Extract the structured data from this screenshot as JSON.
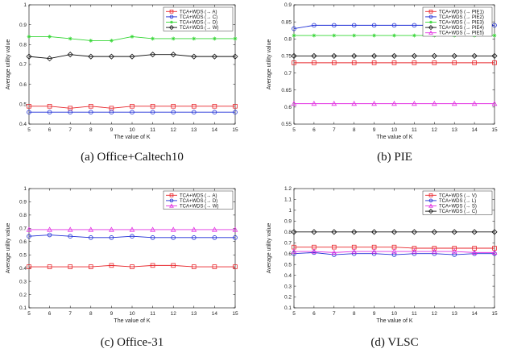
{
  "chart_data": [
    {
      "type": "line",
      "caption": "(a) Office+Caltech10",
      "xlabel": "The value of K",
      "ylabel": "Average utility value",
      "xlim": [
        5,
        15
      ],
      "ylim": [
        0.4,
        1
      ],
      "xticks": [
        5,
        6,
        7,
        8,
        9,
        10,
        11,
        12,
        13,
        14,
        15
      ],
      "yticks": [
        0.4,
        0.5,
        0.6,
        0.7,
        0.8,
        0.9,
        1
      ],
      "ytick_labels": [
        "0.4",
        "0.5",
        "0.6",
        "0.7",
        "0.8",
        "0.9",
        "1"
      ],
      "grid": false,
      "legend_position": "top-right",
      "x": [
        5,
        6,
        7,
        8,
        9,
        10,
        11,
        12,
        13,
        14,
        15
      ],
      "series": [
        {
          "name": "TCA+WDS (→ A)",
          "color": "#e8262b",
          "marker": "square",
          "values": [
            0.49,
            0.49,
            0.48,
            0.49,
            0.48,
            0.49,
            0.49,
            0.49,
            0.49,
            0.49,
            0.49
          ]
        },
        {
          "name": "TCA+WDS (→ C)",
          "color": "#1f2fd6",
          "marker": "circle",
          "values": [
            0.46,
            0.46,
            0.46,
            0.46,
            0.46,
            0.46,
            0.46,
            0.46,
            0.46,
            0.46,
            0.46
          ]
        },
        {
          "name": "TCA+WDS (→ D)",
          "color": "#33d633",
          "marker": "star",
          "values": [
            0.84,
            0.84,
            0.83,
            0.82,
            0.82,
            0.84,
            0.83,
            0.83,
            0.83,
            0.83,
            0.83
          ]
        },
        {
          "name": "TCA+WDS (→ W)",
          "color": "#111111",
          "marker": "diamond",
          "values": [
            0.74,
            0.73,
            0.75,
            0.74,
            0.74,
            0.74,
            0.75,
            0.75,
            0.74,
            0.74,
            0.74
          ]
        }
      ]
    },
    {
      "type": "line",
      "caption": "(b) PIE",
      "xlabel": "The value of K",
      "ylabel": "Average utility value",
      "xlim": [
        5,
        15
      ],
      "ylim": [
        0.55,
        0.9
      ],
      "xticks": [
        5,
        6,
        7,
        8,
        9,
        10,
        11,
        12,
        13,
        14,
        15
      ],
      "yticks": [
        0.55,
        0.6,
        0.65,
        0.7,
        0.75,
        0.8,
        0.85,
        0.9
      ],
      "ytick_labels": [
        "0.55",
        "0.6",
        "0.65",
        "0.7",
        "0.75",
        "0.8",
        "0.85",
        "0.9"
      ],
      "grid": false,
      "legend_position": "top-right",
      "x": [
        5,
        6,
        7,
        8,
        9,
        10,
        11,
        12,
        13,
        14,
        15
      ],
      "series": [
        {
          "name": "TCA+WDS (→ PIE1)",
          "color": "#e8262b",
          "marker": "square",
          "values": [
            0.73,
            0.73,
            0.73,
            0.73,
            0.73,
            0.73,
            0.73,
            0.73,
            0.73,
            0.73,
            0.73
          ]
        },
        {
          "name": "TCA+WDS (→ PIE2)",
          "color": "#1f2fd6",
          "marker": "circle",
          "values": [
            0.83,
            0.84,
            0.84,
            0.84,
            0.84,
            0.84,
            0.84,
            0.84,
            0.84,
            0.84,
            0.84
          ]
        },
        {
          "name": "TCA+WDS (→ PIE3)",
          "color": "#33d633",
          "marker": "star",
          "values": [
            0.81,
            0.81,
            0.81,
            0.81,
            0.81,
            0.81,
            0.81,
            0.81,
            0.81,
            0.81,
            0.81
          ]
        },
        {
          "name": "TCA+WDS (→ PIE4)",
          "color": "#111111",
          "marker": "diamond",
          "values": [
            0.75,
            0.75,
            0.75,
            0.75,
            0.75,
            0.75,
            0.75,
            0.75,
            0.75,
            0.75,
            0.75
          ]
        },
        {
          "name": "TCA+WDS (→ PIE5)",
          "color": "#e233e2",
          "marker": "triangle",
          "values": [
            0.61,
            0.61,
            0.61,
            0.61,
            0.61,
            0.61,
            0.61,
            0.61,
            0.61,
            0.61,
            0.61
          ]
        }
      ]
    },
    {
      "type": "line",
      "caption": "(c) Office-31",
      "xlabel": "The value of K",
      "ylabel": "Average utility value",
      "xlim": [
        5,
        15
      ],
      "ylim": [
        0.1,
        1
      ],
      "xticks": [
        5,
        6,
        7,
        8,
        9,
        10,
        11,
        12,
        13,
        14,
        15
      ],
      "yticks": [
        0.1,
        0.2,
        0.3,
        0.4,
        0.5,
        0.6,
        0.7,
        0.8,
        0.9,
        1
      ],
      "ytick_labels": [
        "0.1",
        "0.2",
        "0.3",
        "0.4",
        "0.5",
        "0.6",
        "0.7",
        "0.8",
        "0.9",
        "1"
      ],
      "grid": false,
      "legend_position": "top-right",
      "x": [
        5,
        6,
        7,
        8,
        9,
        10,
        11,
        12,
        13,
        14,
        15
      ],
      "series": [
        {
          "name": "TCA+WDS (→ A)",
          "color": "#e8262b",
          "marker": "square",
          "values": [
            0.41,
            0.41,
            0.41,
            0.41,
            0.42,
            0.41,
            0.42,
            0.42,
            0.41,
            0.41,
            0.41
          ]
        },
        {
          "name": "TCA+WDS (→ D)",
          "color": "#1f2fd6",
          "marker": "circle",
          "values": [
            0.64,
            0.65,
            0.64,
            0.63,
            0.63,
            0.64,
            0.63,
            0.63,
            0.63,
            0.63,
            0.63
          ]
        },
        {
          "name": "TCA+WDS (→ W)",
          "color": "#e233e2",
          "marker": "triangle",
          "values": [
            0.69,
            0.69,
            0.69,
            0.69,
            0.69,
            0.69,
            0.69,
            0.69,
            0.69,
            0.69,
            0.69
          ]
        }
      ]
    },
    {
      "type": "line",
      "caption": "(d) VLSC",
      "xlabel": "The value of K",
      "ylabel": "Average utility value",
      "xlim": [
        5,
        15
      ],
      "ylim": [
        0.1,
        1.2
      ],
      "xticks": [
        5,
        6,
        7,
        8,
        9,
        10,
        11,
        12,
        13,
        14,
        15
      ],
      "yticks": [
        0.1,
        0.2,
        0.3,
        0.4,
        0.5,
        0.6,
        0.7,
        0.8,
        0.9,
        1,
        1.1,
        1.2
      ],
      "ytick_labels": [
        "0.1",
        "0.2",
        "0.3",
        "0.4",
        "0.5",
        "0.6",
        "0.7",
        "0.8",
        "0.9",
        "1",
        "1.1",
        "1.2"
      ],
      "grid": false,
      "legend_position": "top-right",
      "x": [
        5,
        6,
        7,
        8,
        9,
        10,
        11,
        12,
        13,
        14,
        15
      ],
      "series": [
        {
          "name": "TCA+WDS (→ V)",
          "color": "#e8262b",
          "marker": "square",
          "values": [
            0.66,
            0.66,
            0.66,
            0.66,
            0.66,
            0.66,
            0.65,
            0.65,
            0.65,
            0.65,
            0.65
          ]
        },
        {
          "name": "TCA+WDS (→ L)",
          "color": "#1f2fd6",
          "marker": "circle",
          "values": [
            0.6,
            0.61,
            0.59,
            0.6,
            0.6,
            0.59,
            0.6,
            0.6,
            0.59,
            0.6,
            0.6
          ]
        },
        {
          "name": "TCA+WDS (→ S)",
          "color": "#e233e2",
          "marker": "triangle",
          "values": [
            0.62,
            0.62,
            0.61,
            0.62,
            0.62,
            0.62,
            0.62,
            0.62,
            0.62,
            0.61,
            0.61
          ]
        },
        {
          "name": "TCA+WDS (→ C)",
          "color": "#111111",
          "marker": "diamond",
          "values": [
            0.8,
            0.8,
            0.8,
            0.8,
            0.8,
            0.8,
            0.8,
            0.8,
            0.8,
            0.8,
            0.8
          ]
        }
      ]
    }
  ]
}
